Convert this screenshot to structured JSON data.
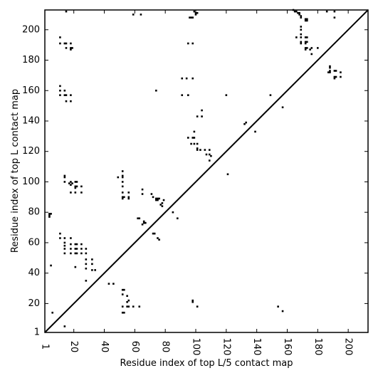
{
  "chart_data": {
    "type": "scatter",
    "title": "",
    "xlabel": "Residue index of top L/5 contact map",
    "ylabel": "Residue index of top L contact map",
    "xlim": [
      1,
      213
    ],
    "ylim": [
      1,
      213
    ],
    "grid": false,
    "legend": "none",
    "x_ticks": [
      1,
      20,
      40,
      60,
      80,
      100,
      120,
      140,
      160,
      180,
      200
    ],
    "y_ticks": [
      1,
      20,
      40,
      60,
      80,
      100,
      120,
      140,
      160,
      180,
      200
    ],
    "x_tick_labels": [
      "1",
      "20",
      "40",
      "60",
      "80",
      "100",
      "120",
      "140",
      "160",
      "180",
      "200"
    ],
    "y_tick_labels": [
      "1",
      "20",
      "40",
      "60",
      "80",
      "100",
      "120",
      "140",
      "160",
      "180",
      "200"
    ],
    "reference_line": {
      "from": [
        1,
        1
      ],
      "to": [
        213,
        213
      ]
    },
    "marker_color": "#000000",
    "series": [
      {
        "region": "upper-left (top L contacts)",
        "points": [
          [
            15,
            212
          ],
          [
            59,
            210
          ],
          [
            64,
            210
          ],
          [
            99,
            212
          ],
          [
            100,
            211
          ],
          [
            101,
            211
          ],
          [
            100,
            210
          ],
          [
            96,
            208
          ],
          [
            97,
            208
          ],
          [
            98,
            208
          ],
          [
            11,
            195
          ],
          [
            11,
            191
          ],
          [
            14,
            191
          ],
          [
            15,
            191
          ],
          [
            18,
            191
          ],
          [
            15,
            188
          ],
          [
            18,
            188
          ],
          [
            19,
            188
          ],
          [
            18,
            187
          ],
          [
            95,
            191
          ],
          [
            98,
            191
          ],
          [
            11,
            163
          ],
          [
            11,
            160
          ],
          [
            14,
            160
          ],
          [
            11,
            157
          ],
          [
            14,
            157
          ],
          [
            15,
            157
          ],
          [
            18,
            157
          ],
          [
            15,
            153
          ],
          [
            18,
            153
          ],
          [
            74,
            160
          ],
          [
            91,
            168
          ],
          [
            94,
            168
          ],
          [
            98,
            168
          ],
          [
            91,
            157
          ],
          [
            95,
            157
          ],
          [
            120,
            157
          ],
          [
            149,
            157
          ],
          [
            157,
            149
          ],
          [
            99,
            133
          ],
          [
            99,
            129
          ],
          [
            95,
            129
          ],
          [
            98,
            129
          ],
          [
            97,
            125
          ],
          [
            99,
            125
          ],
          [
            101,
            125
          ],
          [
            101,
            122
          ],
          [
            103,
            121
          ],
          [
            106,
            121
          ],
          [
            109,
            121
          ],
          [
            101,
            121
          ],
          [
            104,
            147
          ],
          [
            101,
            143
          ],
          [
            104,
            143
          ],
          [
            107,
            118
          ],
          [
            109,
            118
          ],
          [
            110,
            117
          ],
          [
            109,
            114
          ],
          [
            132,
            138
          ],
          [
            133,
            139
          ],
          [
            139,
            133
          ],
          [
            14,
            104
          ],
          [
            14,
            103
          ],
          [
            14,
            100
          ],
          [
            17,
            99
          ],
          [
            18,
            100
          ],
          [
            19,
            99
          ],
          [
            18,
            98
          ],
          [
            21,
            100
          ],
          [
            22,
            100
          ],
          [
            21,
            97
          ],
          [
            22,
            97
          ],
          [
            25,
            97
          ],
          [
            21,
            96
          ],
          [
            18,
            93
          ],
          [
            21,
            93
          ],
          [
            25,
            93
          ],
          [
            52,
            107
          ],
          [
            52,
            104
          ],
          [
            52,
            103
          ],
          [
            49,
            103
          ],
          [
            52,
            100
          ],
          [
            52,
            97
          ],
          [
            52,
            93
          ],
          [
            56,
            93
          ],
          [
            52,
            90
          ],
          [
            53,
            90
          ],
          [
            56,
            90
          ],
          [
            52,
            89
          ],
          [
            56,
            89
          ],
          [
            65,
            95
          ],
          [
            65,
            92
          ],
          [
            71,
            92
          ],
          [
            72,
            90
          ],
          [
            74,
            89
          ],
          [
            75,
            89
          ],
          [
            76,
            89
          ],
          [
            74,
            88
          ],
          [
            75,
            88
          ],
          [
            79,
            88
          ],
          [
            78,
            86
          ],
          [
            77,
            85
          ],
          [
            78,
            84
          ],
          [
            85,
            80
          ],
          [
            88,
            76
          ],
          [
            62,
            76
          ],
          [
            63,
            76
          ],
          [
            66,
            74
          ],
          [
            65,
            72
          ],
          [
            66,
            73
          ],
          [
            67,
            73
          ],
          [
            72,
            66
          ],
          [
            73,
            66
          ],
          [
            75,
            63
          ],
          [
            76,
            62
          ],
          [
            121,
            105
          ],
          [
            4,
            79
          ],
          [
            4,
            78
          ],
          [
            5,
            79
          ],
          [
            4,
            77
          ],
          [
            11,
            66
          ],
          [
            11,
            63
          ],
          [
            14,
            63
          ],
          [
            18,
            63
          ],
          [
            14,
            60
          ],
          [
            14,
            58
          ],
          [
            18,
            59
          ],
          [
            21,
            59
          ],
          [
            22,
            59
          ],
          [
            25,
            59
          ],
          [
            14,
            56
          ],
          [
            14,
            53
          ],
          [
            18,
            56
          ],
          [
            18,
            53
          ],
          [
            21,
            56
          ],
          [
            22,
            56
          ],
          [
            25,
            56
          ],
          [
            21,
            53
          ],
          [
            22,
            53
          ],
          [
            25,
            53
          ],
          [
            28,
            56
          ],
          [
            28,
            53
          ],
          [
            28,
            49
          ],
          [
            28,
            46
          ],
          [
            28,
            43
          ],
          [
            32,
            49
          ],
          [
            32,
            46
          ],
          [
            32,
            42
          ],
          [
            34,
            42
          ],
          [
            5,
            45
          ],
          [
            21,
            44
          ],
          [
            28,
            35
          ],
          [
            43,
            33
          ],
          [
            46,
            33
          ],
          [
            52,
            29
          ],
          [
            53,
            29
          ],
          [
            52,
            26
          ],
          [
            55,
            25
          ],
          [
            55,
            21
          ],
          [
            56,
            22
          ],
          [
            52,
            18
          ],
          [
            55,
            18
          ],
          [
            56,
            18
          ],
          [
            59,
            18
          ],
          [
            63,
            18
          ],
          [
            52,
            14
          ],
          [
            53,
            14
          ],
          [
            98,
            22
          ],
          [
            98,
            21
          ],
          [
            101,
            18
          ],
          [
            154,
            18
          ],
          [
            157,
            15
          ],
          [
            6,
            14
          ],
          [
            14,
            5
          ]
        ]
      },
      {
        "region": "upper-right (top L/5 contacts)",
        "points": [
          [
            164,
            213
          ],
          [
            165,
            212
          ],
          [
            166,
            212
          ],
          [
            167,
            211
          ],
          [
            168,
            211
          ],
          [
            168,
            210
          ],
          [
            169,
            209
          ],
          [
            169,
            208
          ],
          [
            172,
            207
          ],
          [
            173,
            207
          ],
          [
            172,
            206
          ],
          [
            173,
            206
          ],
          [
            186,
            212
          ],
          [
            191,
            212
          ],
          [
            191,
            208
          ],
          [
            169,
            202
          ],
          [
            169,
            200
          ],
          [
            169,
            197
          ],
          [
            166,
            195
          ],
          [
            169,
            195
          ],
          [
            172,
            195
          ],
          [
            173,
            195
          ],
          [
            169,
            192
          ],
          [
            172,
            192
          ],
          [
            173,
            192
          ],
          [
            169,
            191
          ],
          [
            172,
            191
          ],
          [
            172,
            188
          ],
          [
            173,
            188
          ],
          [
            176,
            188
          ],
          [
            180,
            188
          ],
          [
            172,
            187
          ],
          [
            175,
            187
          ],
          [
            176,
            184
          ],
          [
            188,
            176
          ],
          [
            188,
            175
          ],
          [
            188,
            173
          ],
          [
            187,
            172
          ],
          [
            188,
            172
          ],
          [
            191,
            173
          ],
          [
            192,
            173
          ],
          [
            195,
            172
          ],
          [
            191,
            169
          ],
          [
            192,
            169
          ],
          [
            195,
            169
          ],
          [
            191,
            168
          ]
        ]
      }
    ]
  }
}
